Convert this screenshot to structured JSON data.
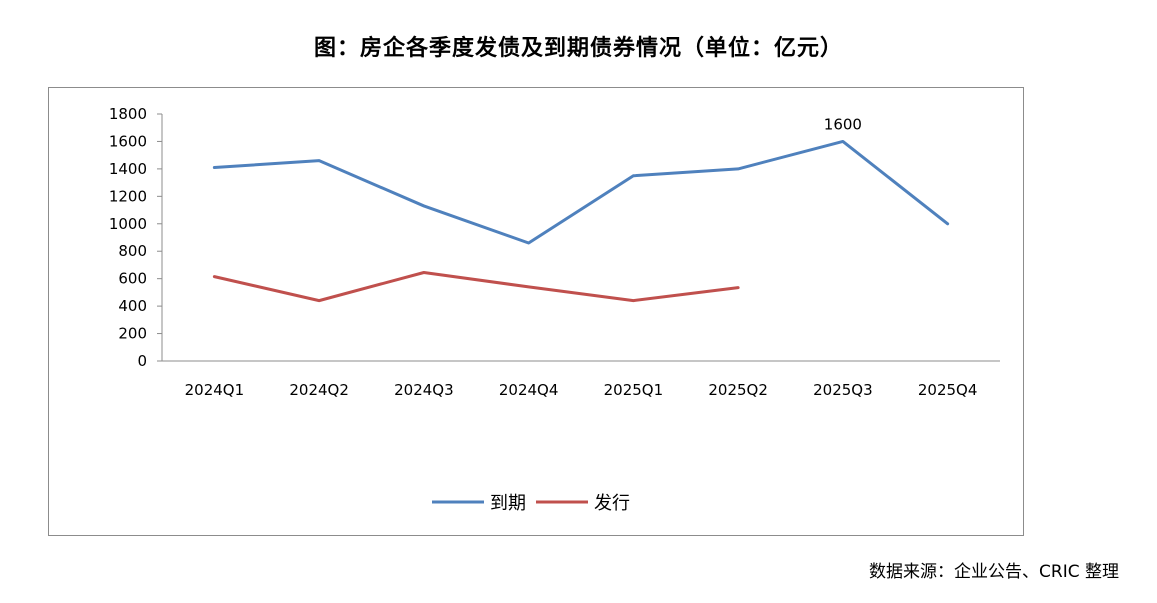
{
  "chart_data": {
    "type": "line",
    "title": "图：房企各季度发债及到期债券情况（单位：亿元）",
    "categories": [
      "2024Q1",
      "2024Q2",
      "2024Q3",
      "2024Q4",
      "2025Q1",
      "2025Q2",
      "2025Q3",
      "2025Q4"
    ],
    "y_ticks": [
      "0",
      "200",
      "400",
      "600",
      "800",
      "1000",
      "1200",
      "1400",
      "1600",
      "1800"
    ],
    "ylim": [
      0,
      1800
    ],
    "grid": false,
    "legend_position": "bottom",
    "series": [
      {
        "name": "到期",
        "color": "#4f81bd",
        "values": [
          1410,
          1460,
          1130,
          860,
          1350,
          1400,
          1600,
          1000
        ]
      },
      {
        "name": "发行",
        "color": "#c0504d",
        "values": [
          615,
          440,
          645,
          540,
          440,
          535,
          null,
          null
        ]
      }
    ],
    "annotations": [
      {
        "series": 0,
        "index": 6,
        "text": "1600"
      }
    ]
  },
  "source": "数据来源：企业公告、CRIC 整理"
}
